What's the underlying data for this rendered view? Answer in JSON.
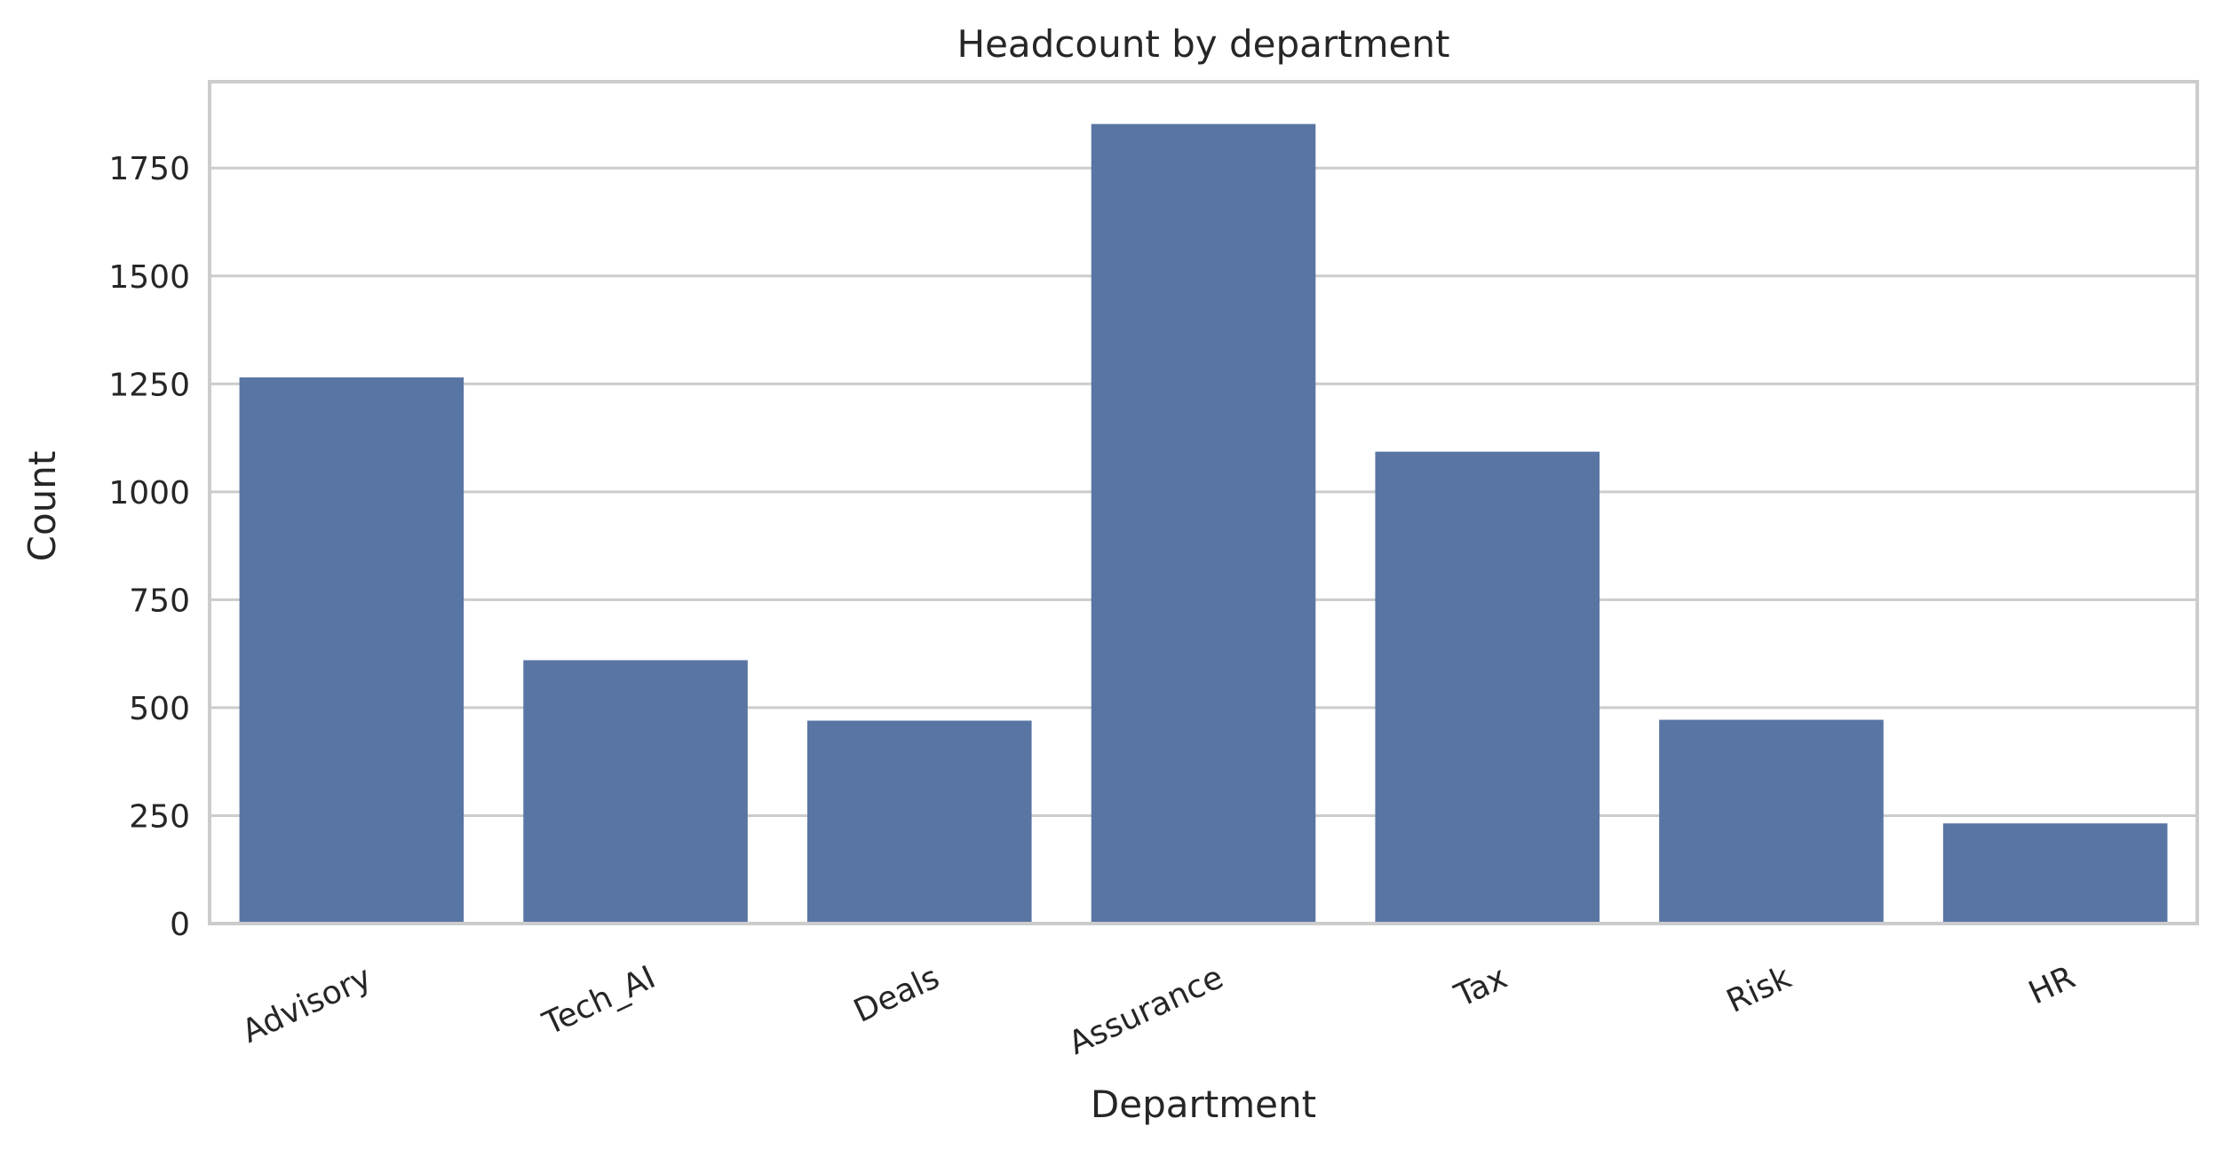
{
  "chart_data": {
    "type": "bar",
    "title": "Headcount by department",
    "xlabel": "Department",
    "ylabel": "Count",
    "categories": [
      "Advisory",
      "Tech_AI",
      "Deals",
      "Assurance",
      "Tax",
      "Risk",
      "HR"
    ],
    "values": [
      1265,
      610,
      470,
      1852,
      1093,
      472,
      232
    ],
    "ylim": [
      0,
      1950
    ],
    "yticks": [
      "0",
      "250",
      "500",
      "750",
      "1000",
      "1250",
      "1500",
      "1750"
    ],
    "grid": "horizontal",
    "legend": "none",
    "x_tick_rotation_deg": -25,
    "colors": {
      "bar": "#5975a4",
      "grid": "#cccccc",
      "spine": "#cccccc",
      "text": "#262626",
      "background": "#ffffff"
    }
  }
}
